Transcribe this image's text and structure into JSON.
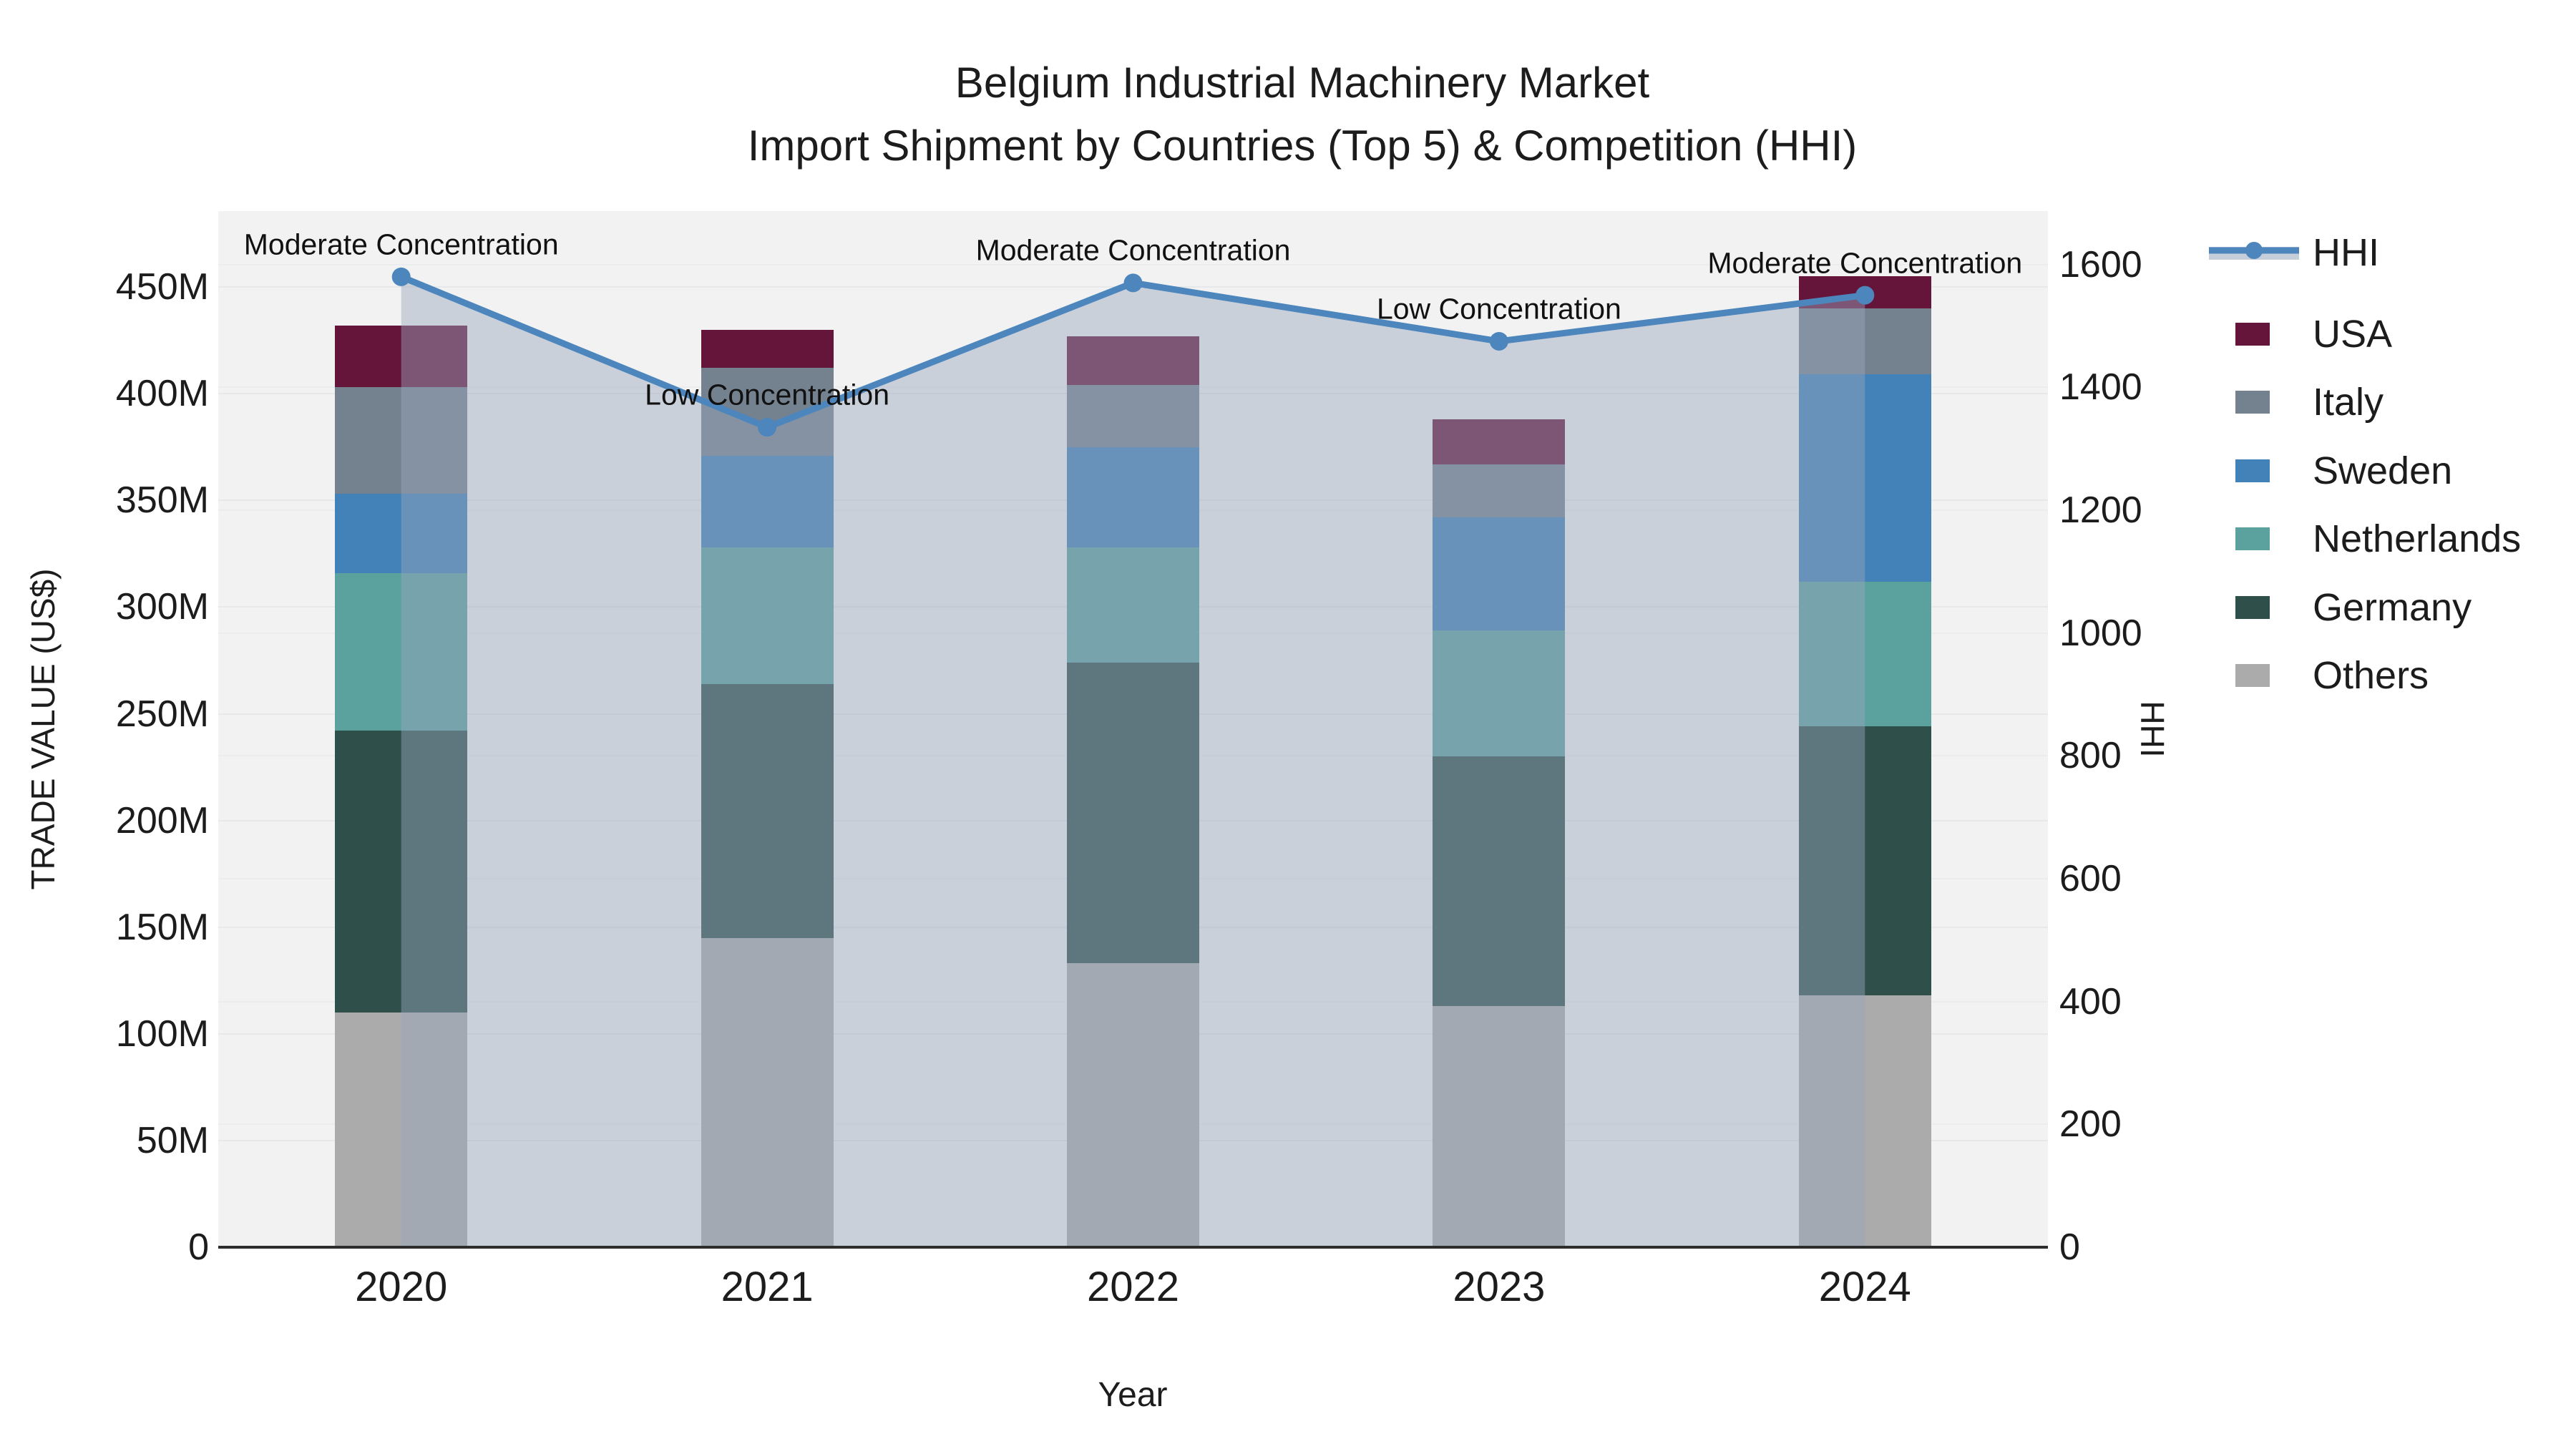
{
  "title": {
    "line1": "Belgium Industrial Machinery Market",
    "line2": "Import Shipment by Countries (Top 5) & Competition (HHI)"
  },
  "axes": {
    "x": {
      "title": "Year",
      "categories": [
        "2020",
        "2021",
        "2022",
        "2023",
        "2024"
      ]
    },
    "y_left": {
      "title": "TRADE VALUE (US$)",
      "tick_labels": [
        "0",
        "50M",
        "100M",
        "150M",
        "200M",
        "250M",
        "300M",
        "350M",
        "400M",
        "450M"
      ],
      "tick_values": [
        0,
        50,
        100,
        150,
        200,
        250,
        300,
        350,
        400,
        450
      ],
      "max": 485.6
    },
    "y_right": {
      "title": "HHI",
      "tick_labels": [
        "0",
        "200",
        "400",
        "600",
        "800",
        "1000",
        "1200",
        "1400",
        "1600"
      ],
      "tick_values": [
        0,
        200,
        400,
        600,
        800,
        1000,
        1200,
        1400,
        1600
      ],
      "max": 1687
    }
  },
  "legend": [
    {
      "label": "HHI",
      "type": "line",
      "color": "#4c86bd"
    },
    {
      "label": "USA",
      "type": "box",
      "color": "#651539"
    },
    {
      "label": "Italy",
      "type": "box",
      "color": "#74828f"
    },
    {
      "label": "Sweden",
      "type": "box",
      "color": "#4381b9"
    },
    {
      "label": "Netherlands",
      "type": "box",
      "color": "#5ba19e"
    },
    {
      "label": "Germany",
      "type": "box",
      "color": "#2f4f4a"
    },
    {
      "label": "Others",
      "type": "box",
      "color": "#ababab"
    }
  ],
  "chart_data": {
    "type": "combo",
    "bar_mode": "stacked",
    "categories": [
      "2020",
      "2021",
      "2022",
      "2023",
      "2024"
    ],
    "series": [
      {
        "name": "Others",
        "values": [
          110,
          145,
          133,
          113,
          118
        ],
        "color": "#ababab"
      },
      {
        "name": "Germany",
        "values": [
          132,
          119,
          141,
          117,
          126
        ],
        "color": "#2f4f4a"
      },
      {
        "name": "Netherlands",
        "values": [
          74,
          64,
          54,
          59,
          68
        ],
        "color": "#5ba19e"
      },
      {
        "name": "Sweden",
        "values": [
          37,
          43,
          47,
          53,
          97
        ],
        "color": "#4381b9"
      },
      {
        "name": "Italy",
        "values": [
          50,
          41,
          29,
          25,
          31
        ],
        "color": "#74828f"
      },
      {
        "name": "USA",
        "values": [
          29,
          18,
          23,
          21,
          15
        ],
        "color": "#651539"
      }
    ],
    "bar_totals": [
      432,
      430,
      427,
      388,
      455
    ],
    "line": {
      "name": "HHI",
      "values": [
        1580,
        1335,
        1570,
        1475,
        1550
      ],
      "color": "#4c86bd",
      "area_fill": "rgba(152,166,188,0.45)"
    },
    "annotations": [
      {
        "x": "2020",
        "text": "Moderate Concentration"
      },
      {
        "x": "2021",
        "text": "Low Concentration"
      },
      {
        "x": "2022",
        "text": "Moderate Concentration"
      },
      {
        "x": "2023",
        "text": "Low Concentration"
      },
      {
        "x": "2024",
        "text": "Moderate Concentration"
      }
    ],
    "xlabel": "Year",
    "ylabel_left": "TRADE VALUE (US$)",
    "ylabel_right": "HHI",
    "ylim_left": [
      0,
      485.6
    ],
    "ylim_right": [
      0,
      1687
    ],
    "grid": true,
    "legend_position": "right"
  },
  "colors": {
    "plot_background": "#f2f2f2",
    "page_background": "#ffffff",
    "gridline": "#e6e8ea",
    "axis_line": "#2d2d2d",
    "text": "#1c1c1c"
  }
}
